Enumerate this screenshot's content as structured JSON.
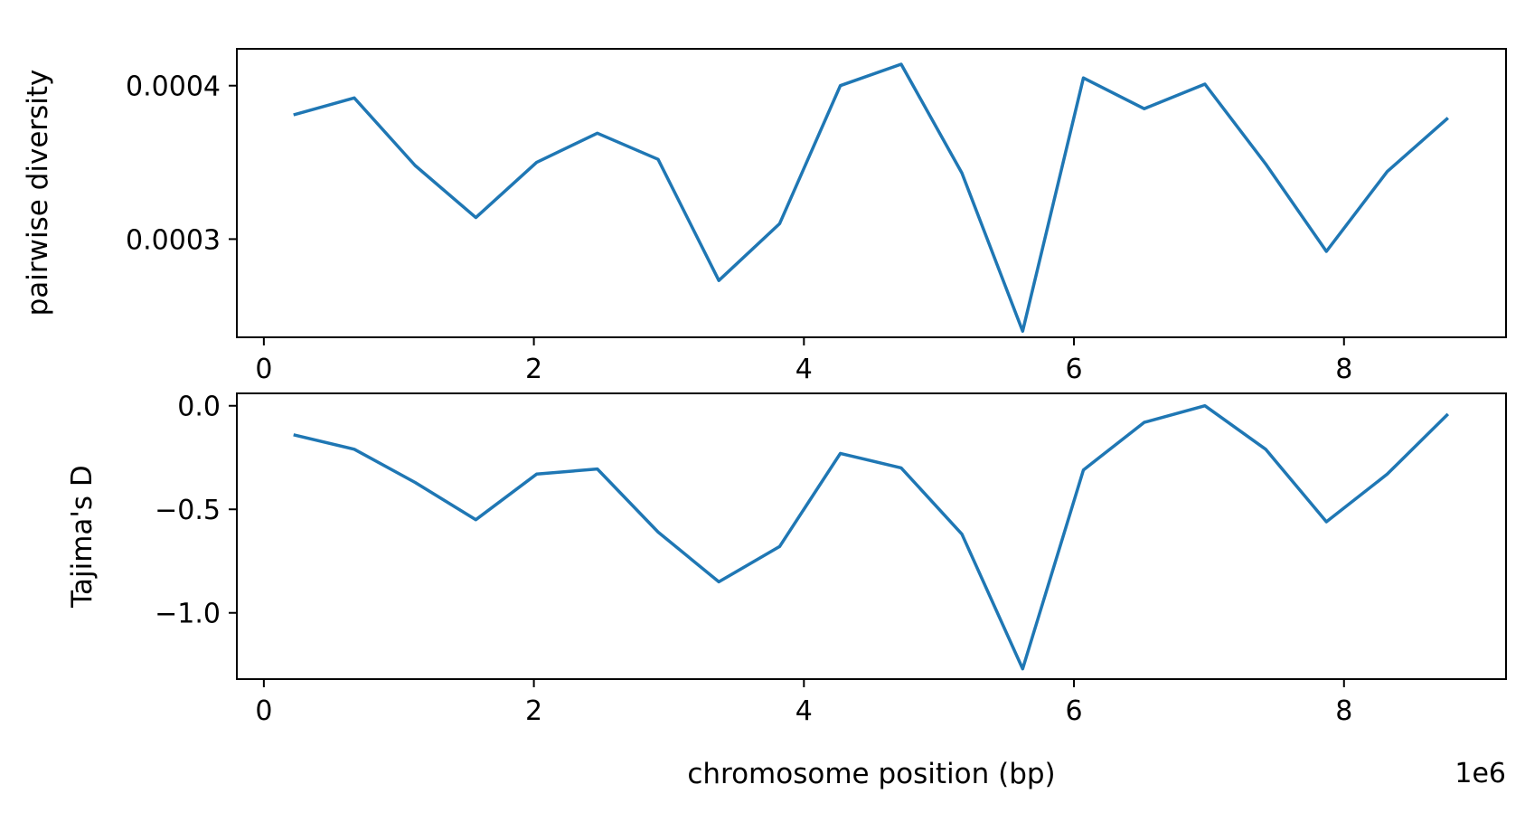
{
  "colors": {
    "series": "#1f77b4"
  },
  "chart_data": [
    {
      "type": "line",
      "title": "",
      "xlabel": "",
      "ylabel": "pairwise diversity",
      "xlim": [
        -200000,
        9200000
      ],
      "ylim": [
        0.000236,
        0.000424
      ],
      "xticks": [
        0,
        2,
        4,
        6,
        8
      ],
      "yticks": [
        0.0003,
        0.0004
      ],
      "ytick_labels": [
        "0.0003",
        "0.0004"
      ],
      "grid": false,
      "series": [
        {
          "x": [
            220000,
            670000,
            1120000,
            1570000,
            2020000,
            2470000,
            2920000,
            3370000,
            3820000,
            4270000,
            4720000,
            5170000,
            5620000,
            6070000,
            6520000,
            6970000,
            7420000,
            7870000,
            8320000,
            8770000
          ],
          "values": [
            0.000381,
            0.000392,
            0.000348,
            0.000314,
            0.00035,
            0.000369,
            0.000352,
            0.000273,
            0.00031,
            0.0004,
            0.000414,
            0.000343,
            0.00024,
            0.000405,
            0.000385,
            0.000401,
            0.000349,
            0.000292,
            0.000344,
            0.000379
          ]
        }
      ]
    },
    {
      "type": "line",
      "title": "",
      "xlabel": "chromosome position (bp)",
      "ylabel": "Tajima's D",
      "x_offset_label": "1e6",
      "xlim": [
        -200000,
        9200000
      ],
      "ylim": [
        -1.32,
        0.06
      ],
      "xticks": [
        0,
        2,
        4,
        6,
        8
      ],
      "yticks": [
        0.0,
        -0.5,
        -1.0
      ],
      "ytick_labels": [
        "0.0",
        "−0.5",
        "−1.0"
      ],
      "grid": false,
      "series": [
        {
          "x": [
            220000,
            670000,
            1120000,
            1570000,
            2020000,
            2470000,
            2920000,
            3370000,
            3820000,
            4270000,
            4720000,
            5170000,
            5620000,
            6070000,
            6520000,
            6970000,
            7420000,
            7870000,
            8320000,
            8770000
          ],
          "values": [
            -0.14,
            -0.21,
            -0.37,
            -0.55,
            -0.33,
            -0.305,
            -0.61,
            -0.85,
            -0.68,
            -0.23,
            -0.3,
            -0.62,
            -1.27,
            -0.31,
            -0.08,
            0.0,
            -0.21,
            -0.56,
            -0.33,
            -0.04
          ]
        }
      ]
    }
  ]
}
